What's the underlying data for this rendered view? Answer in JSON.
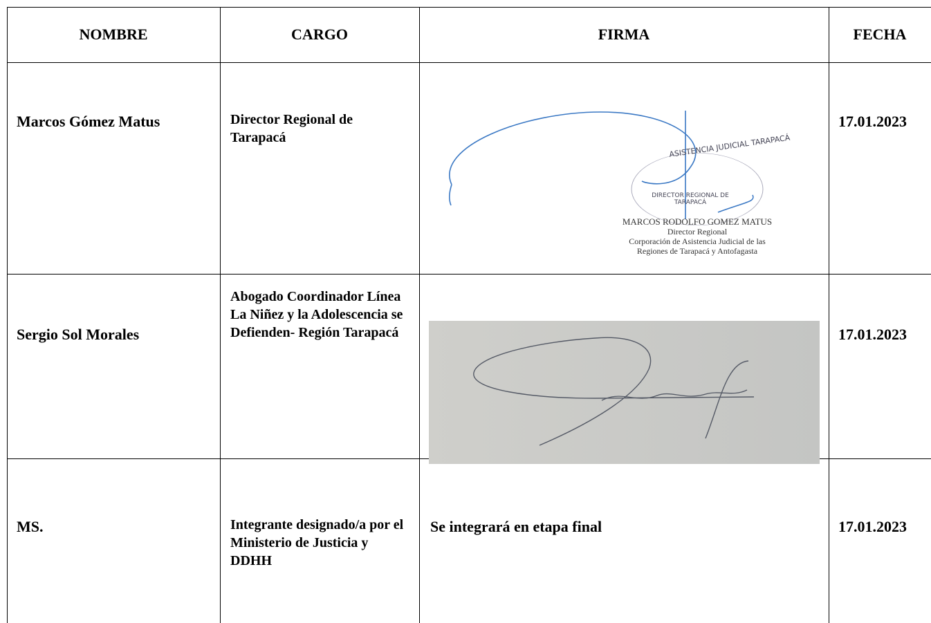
{
  "table": {
    "header": [
      "NOMBRE",
      "CARGO",
      "FIRMA",
      "FECHA"
    ],
    "rows": [
      {
        "nombre": "Marcos Gómez Matus",
        "cargo": "Director Regional de Tarapacá",
        "fecha": "17.01.2023",
        "stamp": {
          "ring": "ASISTENCIA JUDICIAL TARAPACÁ",
          "inner": [
            "DIRECTOR REGIONAL DE",
            "TARAPACÁ"
          ],
          "lines": [
            "MARCOS RODOLFO GOMEZ MATUS",
            "Director Regional",
            "Corporación de Asistencia Judicial de las",
            "Regiones de Tarapacá y Antofagasta"
          ]
        }
      },
      {
        "nombre": "Sergio Sol Morales",
        "cargo": "Abogado Coordinador Línea La Niñez y la Adolescencia se Defienden- Región Tarapacá",
        "fecha": "17.01.2023"
      },
      {
        "nombre": "MS.",
        "cargo": "Integrante designado/a por el Ministerio de Justicia y DDHH",
        "firma": "Se integrará en etapa final",
        "fecha": "17.01.2023"
      }
    ]
  }
}
